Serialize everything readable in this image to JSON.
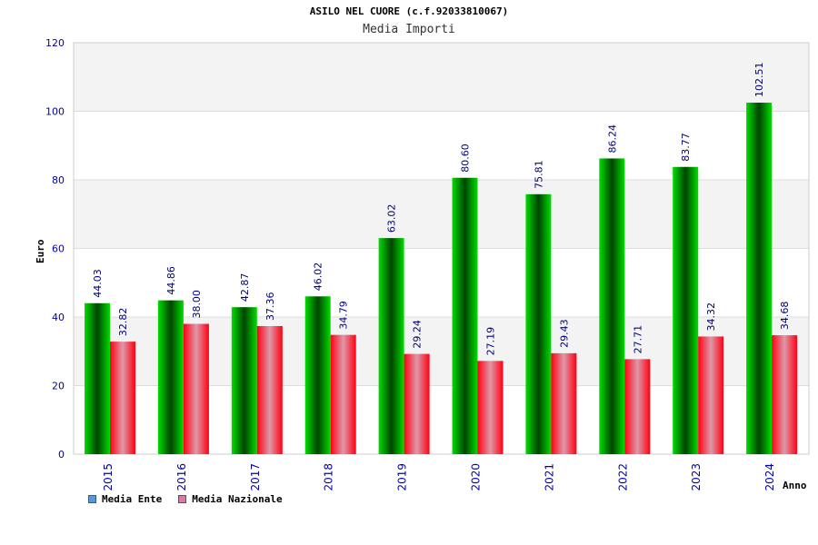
{
  "chart_data": {
    "type": "bar",
    "title": "ASILO NEL CUORE (c.f.92033810067)",
    "subtitle": "Media Importi",
    "xlabel": "Anno",
    "ylabel": "Euro",
    "ylim": [
      0,
      120
    ],
    "yticks": [
      0,
      20,
      40,
      60,
      80,
      100,
      120
    ],
    "grid": true,
    "legend_position": "bottom-left",
    "categories": [
      "2015",
      "2016",
      "2017",
      "2018",
      "2019",
      "2020",
      "2021",
      "2022",
      "2023",
      "2024"
    ],
    "series": [
      {
        "name": "Media Ente",
        "legend_color": "#5599dd",
        "bar_color": "#00cc00",
        "values": [
          44.03,
          44.86,
          42.87,
          46.02,
          63.02,
          80.6,
          75.81,
          86.24,
          83.77,
          102.51
        ],
        "labels": [
          "44.03",
          "44.86",
          "42.87",
          "46.02",
          "63.02",
          "80.60",
          "75.81",
          "86.24",
          "83.77",
          "102.51"
        ]
      },
      {
        "name": "Media Nazionale",
        "legend_color": "#dd77aa",
        "bar_color": "#ee1122",
        "values": [
          32.82,
          38.0,
          37.36,
          34.79,
          29.24,
          27.19,
          29.43,
          27.71,
          34.32,
          34.68
        ],
        "labels": [
          "32.82",
          "38.00",
          "37.36",
          "34.79",
          "29.24",
          "27.19",
          "29.43",
          "27.71",
          "34.32",
          "34.68"
        ]
      }
    ],
    "colors": {
      "axis_text": "#0000aa",
      "value_label": "#000077",
      "band": "#f3f3f3"
    }
  }
}
